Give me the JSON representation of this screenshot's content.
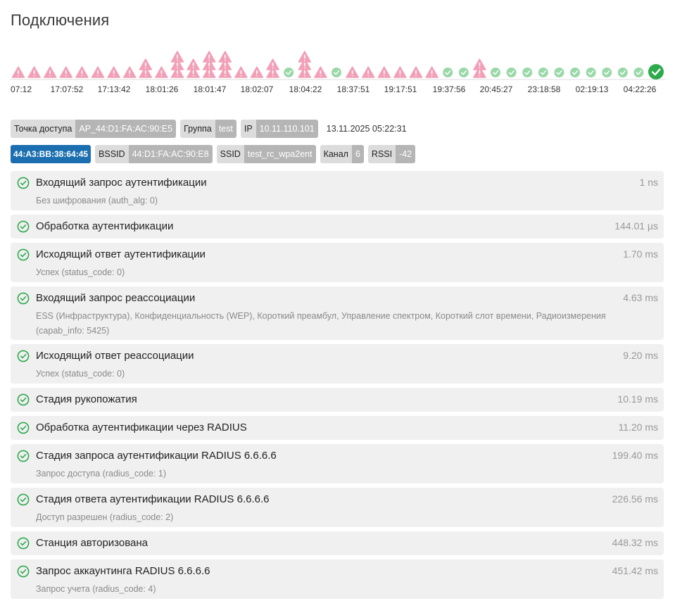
{
  "page": {
    "title": "Подключения"
  },
  "timeline": {
    "ticks": [
      "07:12",
      "17:07:52",
      "17:13:42",
      "18:01:26",
      "18:01:47",
      "18:02:07",
      "18:04:22",
      "18:37:51",
      "19:17:51",
      "19:37:56",
      "20:45:27",
      "23:18:58",
      "02:19:13",
      "04:22:26"
    ],
    "markers": [
      {
        "status": "warn",
        "stack": 1
      },
      {
        "status": "warn",
        "stack": 1
      },
      {
        "status": "warn",
        "stack": 1
      },
      {
        "status": "warn",
        "stack": 1
      },
      {
        "status": "warn",
        "stack": 1
      },
      {
        "status": "warn",
        "stack": 1
      },
      {
        "status": "warn",
        "stack": 1
      },
      {
        "status": "warn",
        "stack": 1
      },
      {
        "status": "warn",
        "stack": 2
      },
      {
        "status": "warn",
        "stack": 1
      },
      {
        "status": "warn",
        "stack": 3
      },
      {
        "status": "warn",
        "stack": 2
      },
      {
        "status": "warn",
        "stack": 3
      },
      {
        "status": "warn",
        "stack": 3
      },
      {
        "status": "warn",
        "stack": 1
      },
      {
        "status": "warn",
        "stack": 1
      },
      {
        "status": "warn",
        "stack": 2
      },
      {
        "status": "ok",
        "stack": 1
      },
      {
        "status": "warn",
        "stack": 3
      },
      {
        "status": "warn",
        "stack": 1
      },
      {
        "status": "ok",
        "stack": 1
      },
      {
        "status": "warn",
        "stack": 1
      },
      {
        "status": "warn",
        "stack": 1
      },
      {
        "status": "warn",
        "stack": 1
      },
      {
        "status": "warn",
        "stack": 1
      },
      {
        "status": "warn",
        "stack": 1
      },
      {
        "status": "warn",
        "stack": 1
      },
      {
        "status": "ok",
        "stack": 1
      },
      {
        "status": "ok",
        "stack": 1
      },
      {
        "status": "warn",
        "stack": 2
      },
      {
        "status": "ok",
        "stack": 1
      },
      {
        "status": "ok",
        "stack": 1
      },
      {
        "status": "ok",
        "stack": 1
      },
      {
        "status": "ok",
        "stack": 1
      },
      {
        "status": "ok",
        "stack": 1
      },
      {
        "status": "ok",
        "stack": 1
      },
      {
        "status": "ok",
        "stack": 1
      },
      {
        "status": "ok",
        "stack": 1
      },
      {
        "status": "ok",
        "stack": 1
      },
      {
        "status": "ok",
        "stack": 1
      },
      {
        "status": "ok-selected",
        "stack": 1
      }
    ],
    "colors": {
      "warn": "#f2a0b8",
      "ok": "#9bd8a8",
      "selected": "#2eaa4e"
    }
  },
  "info": {
    "ap_label": "Точка доступа",
    "ap_value": "AP_44:D1:FA:AC:90:E5",
    "group_label": "Группа",
    "group_value": "test",
    "ip_label": "IP",
    "ip_value": "10.11.110.101",
    "timestamp": "13.11.2025 05:22:31",
    "client_mac": "44:A3:BB:38:64:45",
    "bssid_label": "BSSID",
    "bssid_value": "44:D1:FA:AC:90:E8",
    "ssid_label": "SSID",
    "ssid_value": "test_rc_wpa2ent",
    "channel_label": "Канал",
    "channel_value": "6",
    "rssi_label": "RSSI",
    "rssi_value": "-42"
  },
  "events": [
    {
      "title": "Входящий запрос аутентификации",
      "subtitle": "Без шифрования (auth_alg: 0)",
      "time": "1 ns"
    },
    {
      "title": "Обработка аутентификации",
      "subtitle": "",
      "time": "144.01 µs"
    },
    {
      "title": "Исходящий ответ аутентификации",
      "subtitle": "Успех (status_code: 0)",
      "time": "1.70 ms"
    },
    {
      "title": "Входящий запрос реассоциации",
      "subtitle": "ESS (Инфраструктура), Конфиденциальность (WEP), Короткий преамбул, Управление спектром, Короткий слот времени, Радиоизмерения (capab_info: 5425)",
      "time": "4.63 ms"
    },
    {
      "title": "Исходящий ответ реассоциации",
      "subtitle": "Успех (status_code: 0)",
      "time": "9.20 ms"
    },
    {
      "title": "Стадия рукопожатия",
      "subtitle": "",
      "time": "10.19 ms"
    },
    {
      "title": "Обработка аутентификации через RADIUS",
      "subtitle": "",
      "time": "11.20 ms"
    },
    {
      "title": "Стадия запроса аутентификации RADIUS 6.6.6.6",
      "subtitle": "Запрос доступа (radius_code: 1)",
      "time": "199.40 ms"
    },
    {
      "title": "Стадия ответа аутентификации RADIUS 6.6.6.6",
      "subtitle": "Доступ разрешен (radius_code: 2)",
      "time": "226.56 ms"
    },
    {
      "title": "Станция авторизована",
      "subtitle": "",
      "time": "448.32 ms"
    },
    {
      "title": "Запрос аккаунтинга RADIUS 6.6.6.6",
      "subtitle": "Запрос учета (radius_code: 4)",
      "time": "451.42 ms"
    }
  ]
}
